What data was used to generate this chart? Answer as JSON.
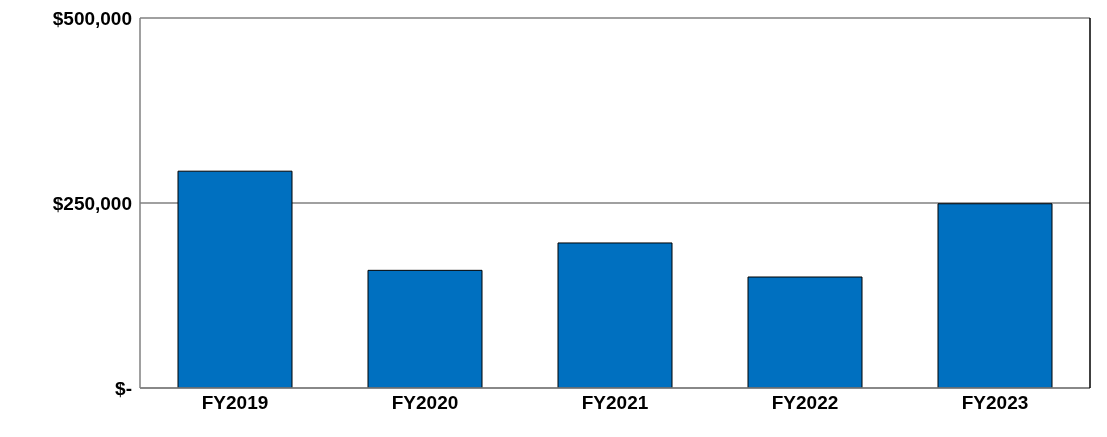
{
  "chart_data": {
    "type": "bar",
    "categories": [
      "FY2019",
      "FY2020",
      "FY2021",
      "FY2022",
      "FY2023"
    ],
    "values": [
      293000,
      159000,
      196000,
      150000,
      249000
    ],
    "color": "#0070c0",
    "ylim": [
      0,
      500000
    ],
    "yticks": [
      {
        "value": 0,
        "label": "$-"
      },
      {
        "value": 250000,
        "label": "$250,000"
      },
      {
        "value": 500000,
        "label": "$500,000"
      }
    ],
    "grid": "y"
  }
}
